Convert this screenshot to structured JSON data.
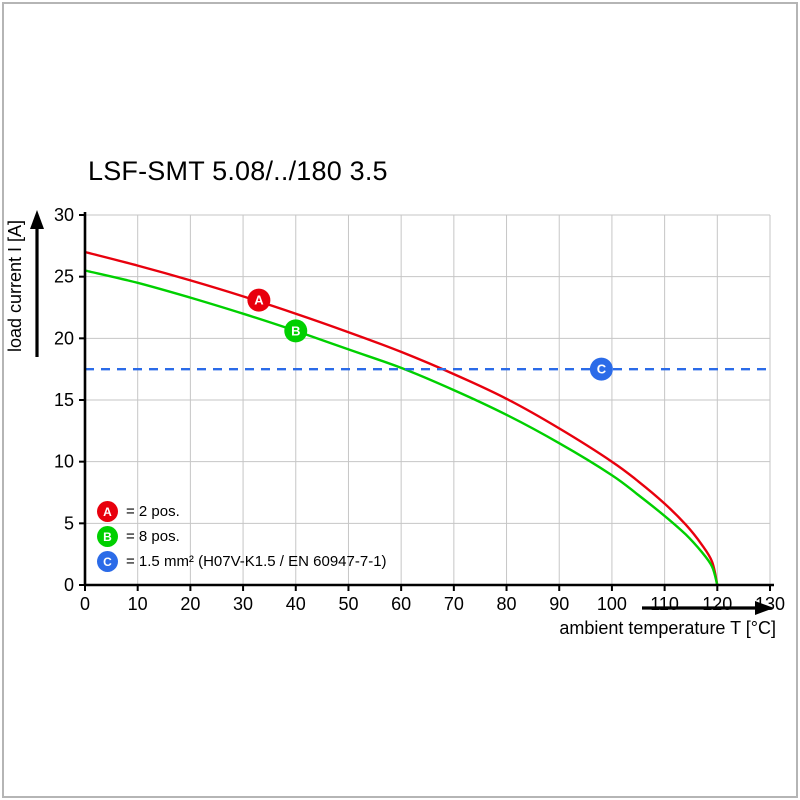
{
  "chart_data": {
    "type": "line",
    "title": "LSF-SMT 5.08/../180 3.5",
    "xlabel": "ambient temperature T [°C]",
    "ylabel": "load current I [A]",
    "xlim": [
      0,
      130
    ],
    "ylim": [
      0,
      30
    ],
    "xticks": [
      0,
      10,
      20,
      30,
      40,
      50,
      60,
      70,
      80,
      90,
      100,
      110,
      120,
      130
    ],
    "yticks": [
      0,
      5,
      10,
      15,
      20,
      25,
      30
    ],
    "grid": true,
    "grid_color": "#c6c6c6",
    "axis_color": "#000000",
    "series": [
      {
        "id": "A",
        "legend": "= 2 pos.",
        "color": "#e8000d",
        "kind": "curve",
        "points": [
          [
            0,
            27.0
          ],
          [
            10,
            25.9
          ],
          [
            20,
            24.7
          ],
          [
            30,
            23.4
          ],
          [
            40,
            22.0
          ],
          [
            50,
            20.5
          ],
          [
            60,
            18.9
          ],
          [
            70,
            17.1
          ],
          [
            80,
            15.1
          ],
          [
            90,
            12.7
          ],
          [
            100,
            10.0
          ],
          [
            105,
            8.4
          ],
          [
            110,
            6.6
          ],
          [
            114,
            4.9
          ],
          [
            117,
            3.3
          ],
          [
            119,
            1.9
          ],
          [
            120,
            0
          ]
        ]
      },
      {
        "id": "B",
        "legend": "= 8 pos.",
        "color": "#00d000",
        "kind": "curve",
        "points": [
          [
            0,
            25.5
          ],
          [
            10,
            24.5
          ],
          [
            20,
            23.3
          ],
          [
            30,
            22.0
          ],
          [
            40,
            20.6
          ],
          [
            50,
            19.1
          ],
          [
            60,
            17.6
          ],
          [
            70,
            15.8
          ],
          [
            80,
            13.8
          ],
          [
            90,
            11.5
          ],
          [
            100,
            8.9
          ],
          [
            105,
            7.3
          ],
          [
            110,
            5.6
          ],
          [
            114,
            4.1
          ],
          [
            117,
            2.7
          ],
          [
            119,
            1.5
          ],
          [
            120,
            0
          ]
        ]
      },
      {
        "id": "C",
        "legend": "= 1.5 mm² (H07V-K1.5 / EN 60947-7-1)",
        "color": "#2b6be8",
        "kind": "hline",
        "y": 17.5,
        "dash": true
      }
    ],
    "markers": [
      {
        "label": "A",
        "x": 33,
        "y": 23.1,
        "color": "#e8000d"
      },
      {
        "label": "B",
        "x": 40,
        "y": 20.6,
        "color": "#00d000"
      },
      {
        "label": "C",
        "x": 98,
        "y": 17.5,
        "color": "#2b6be8"
      }
    ]
  }
}
